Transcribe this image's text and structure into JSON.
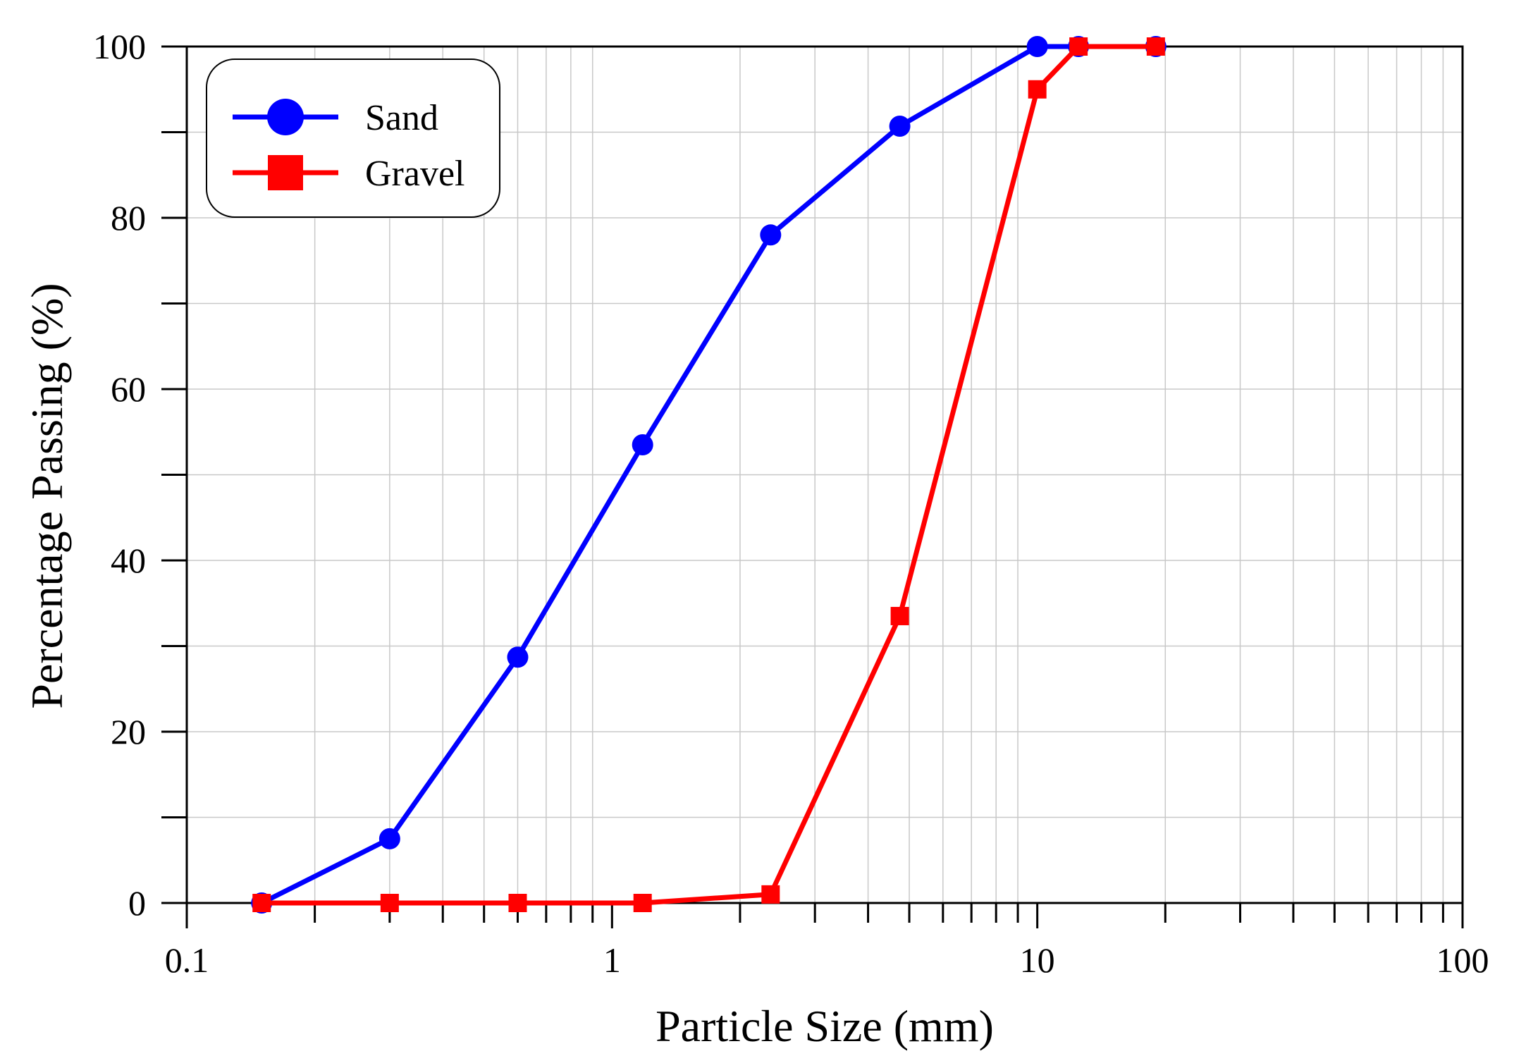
{
  "chart_data": {
    "type": "line",
    "xlabel": "Particle Size (mm)",
    "ylabel": "Percentage Passing (%)",
    "xscale": "log",
    "xlim": [
      0.1,
      100
    ],
    "ylim": [
      0,
      100
    ],
    "grid": true,
    "legend_position": "top-left",
    "x_tick_labels": [
      "0.1",
      "1",
      "10",
      "100"
    ],
    "y_tick_labels": [
      "0",
      "20",
      "40",
      "60",
      "80",
      "100"
    ],
    "series": [
      {
        "name": "Sand",
        "marker": "circle",
        "color": "#0000ff",
        "x": [
          0.15,
          0.3,
          0.6,
          1.18,
          2.36,
          4.75,
          10,
          12.5,
          19
        ],
        "y": [
          0,
          7.5,
          28.7,
          53.5,
          78,
          90.7,
          100,
          100,
          100
        ]
      },
      {
        "name": "Gravel",
        "marker": "square",
        "color": "#ff0000",
        "x": [
          0.15,
          0.3,
          0.6,
          1.18,
          2.36,
          4.75,
          10,
          12.5,
          19
        ],
        "y": [
          0,
          0,
          0,
          0,
          1,
          33.5,
          95,
          100,
          100
        ]
      }
    ]
  }
}
